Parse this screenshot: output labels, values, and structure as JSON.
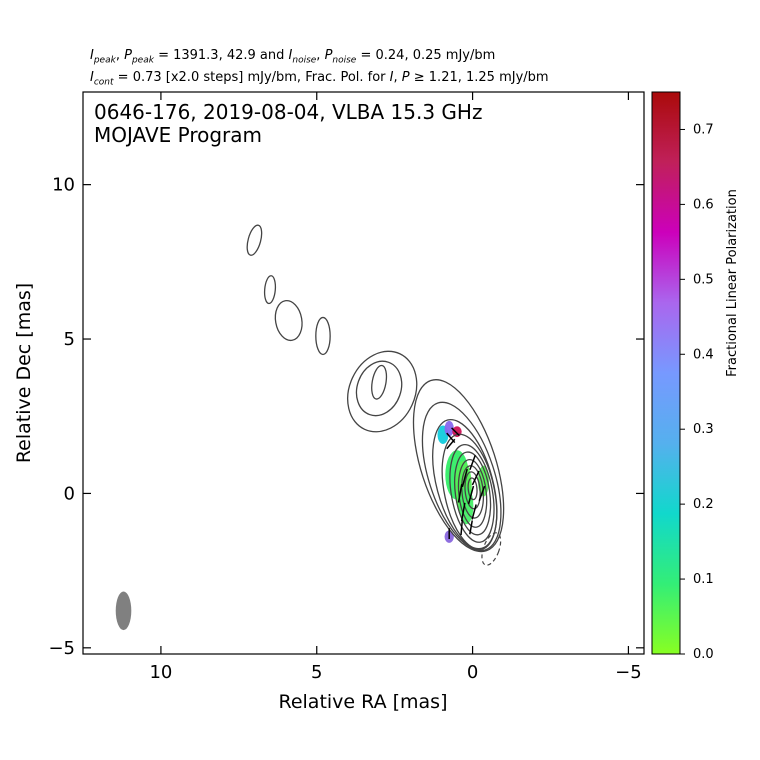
{
  "header": {
    "i_peak_label": "I",
    "i_peak_sub": "peak",
    "p_peak_label": "P",
    "p_peak_sub": "peak",
    "peak_values": "= 1391.3, 42.9 and",
    "i_noise_label": "I",
    "i_noise_sub": "noise",
    "p_noise_label": "P",
    "p_noise_sub": "noise",
    "noise_values": "= 0.24, 0.25 mJy/bm",
    "i_cont_label": "I",
    "i_cont_sub": "cont",
    "cont_text": "= 0.73 [x2.0 steps] mJy/bm, Frac. Pol. for",
    "frac_i": "I",
    "frac_p": "P",
    "frac_values": "≥ 1.21, 1.25 mJy/bm"
  },
  "chart_data": {
    "type": "contour",
    "title": "0646-176, 2019-08-04, VLBA 15.3 GHz",
    "subtitle": "MOJAVE Program",
    "xlabel": "Relative RA [mas]",
    "ylabel": "Relative Dec [mas]",
    "xlim": [
      12.5,
      -5.5
    ],
    "ylim": [
      -5.2,
      13.0
    ],
    "x_ticks": [
      10,
      5,
      0,
      -5
    ],
    "x_tick_labels": [
      "10",
      "5",
      "0",
      "−5"
    ],
    "y_ticks": [
      10,
      5,
      0,
      -5
    ],
    "y_tick_labels": [
      "10",
      "5",
      "0",
      "−5"
    ],
    "colorbar": {
      "label": "Fractional Linear Polarization",
      "range": [
        0.0,
        0.75
      ],
      "ticks": [
        0.0,
        0.1,
        0.2,
        0.3,
        0.4,
        0.5,
        0.6,
        0.7
      ],
      "tick_labels": [
        "0.0",
        "0.1",
        "0.2",
        "0.3",
        "0.4",
        "0.5",
        "0.6",
        "0.7"
      ],
      "colors": [
        "#88ff22",
        "#33ee77",
        "#11d8cc",
        "#55b0ee",
        "#7799ff",
        "#aa66ee",
        "#cc00bb",
        "#c0205a",
        "#aa0a0a"
      ]
    },
    "beam": {
      "x": 11.2,
      "y": -3.8,
      "major_mas": 1.25,
      "minor_mas": 0.5,
      "pa_deg": 0,
      "color": "#808080"
    },
    "contour_color": "#444444",
    "contours": [
      {
        "cx": 7.0,
        "cy": 8.2,
        "rx": 0.2,
        "ry": 0.5,
        "angle": 15
      },
      {
        "cx": 6.5,
        "cy": 6.6,
        "rx": 0.17,
        "ry": 0.45,
        "angle": 5
      },
      {
        "cx": 5.9,
        "cy": 5.6,
        "rx": 0.42,
        "ry": 0.65,
        "angle": -10
      },
      {
        "cx": 4.8,
        "cy": 5.1,
        "rx": 0.23,
        "ry": 0.6,
        "angle": 0
      },
      {
        "cx": 2.9,
        "cy": 3.3,
        "rx": 1.05,
        "ry": 1.35,
        "angle": 25
      },
      {
        "cx": 3.0,
        "cy": 3.4,
        "rx": 0.7,
        "ry": 0.9,
        "angle": 20
      },
      {
        "cx": 3.0,
        "cy": 3.6,
        "rx": 0.22,
        "ry": 0.55,
        "angle": 10
      },
      {
        "cx": 0.45,
        "cy": 0.9,
        "rx": 1.2,
        "ry": 2.9,
        "angle": -18
      },
      {
        "cx": 0.35,
        "cy": 0.55,
        "rx": 1.05,
        "ry": 2.5,
        "angle": -18
      },
      {
        "cx": 0.25,
        "cy": 0.3,
        "rx": 0.9,
        "ry": 2.15,
        "angle": -15
      },
      {
        "cx": 0.1,
        "cy": 0.05,
        "rx": 0.8,
        "ry": 1.9,
        "angle": -12
      },
      {
        "cx": 0.02,
        "cy": 0.0,
        "rx": 0.66,
        "ry": 1.6,
        "angle": -10
      },
      {
        "cx": 0.0,
        "cy": 0.0,
        "rx": 0.55,
        "ry": 1.35,
        "angle": -8
      },
      {
        "cx": 0.0,
        "cy": 0.0,
        "rx": 0.44,
        "ry": 1.1,
        "angle": -6
      },
      {
        "cx": 0.0,
        "cy": 0.05,
        "rx": 0.34,
        "ry": 0.85,
        "angle": -5
      },
      {
        "cx": 0.0,
        "cy": 0.1,
        "rx": 0.24,
        "ry": 0.6,
        "angle": -5
      },
      {
        "cx": 0.0,
        "cy": 0.15,
        "rx": 0.14,
        "ry": 0.35,
        "angle": -5
      }
    ],
    "negative_contours": [
      {
        "cx": -0.6,
        "cy": -1.8,
        "rx": 0.25,
        "ry": 0.55,
        "angle": 20
      }
    ],
    "polarization_patches": [
      {
        "x": 0.5,
        "y": 0.6,
        "w": 0.75,
        "h": 1.6,
        "color": "#33ee66"
      },
      {
        "x": 0.3,
        "y": 0.2,
        "w": 0.55,
        "h": 1.7,
        "color": "#55ee55"
      },
      {
        "x": 0.2,
        "y": -0.4,
        "w": 0.45,
        "h": 1.2,
        "color": "#44ee66"
      },
      {
        "x": -0.35,
        "y": 0.4,
        "w": 0.35,
        "h": 1.0,
        "color": "#55ee55"
      },
      {
        "x": 0.95,
        "y": 1.9,
        "w": 0.35,
        "h": 0.6,
        "color": "#11ccdd"
      },
      {
        "x": 0.75,
        "y": 2.1,
        "w": 0.3,
        "h": 0.5,
        "color": "#8866ee"
      },
      {
        "x": 0.5,
        "y": 2.0,
        "w": 0.3,
        "h": 0.35,
        "color": "#cc1155"
      },
      {
        "x": 0.75,
        "y": -1.4,
        "w": 0.3,
        "h": 0.4,
        "color": "#8866dd"
      }
    ],
    "evpa_vectors": [
      {
        "x": 0.0,
        "y": 1.0,
        "len": 0.5,
        "angle": 20
      },
      {
        "x": 0.25,
        "y": 0.5,
        "len": 0.6,
        "angle": 15
      },
      {
        "x": -0.1,
        "y": 0.5,
        "len": 0.5,
        "angle": 25
      },
      {
        "x": 0.4,
        "y": 0.0,
        "len": 0.6,
        "angle": 10
      },
      {
        "x": 0.05,
        "y": -0.05,
        "len": 0.6,
        "angle": 15
      },
      {
        "x": -0.3,
        "y": 0.0,
        "len": 0.5,
        "angle": 20
      },
      {
        "x": 0.3,
        "y": -0.6,
        "len": 0.6,
        "angle": 10
      },
      {
        "x": -0.05,
        "y": -0.6,
        "len": 0.5,
        "angle": 15
      },
      {
        "x": 0.35,
        "y": -1.1,
        "len": 0.5,
        "angle": 5
      },
      {
        "x": 0.05,
        "y": -1.1,
        "len": 0.45,
        "angle": 10
      },
      {
        "x": 0.7,
        "y": 1.8,
        "len": 0.4,
        "angle": -40
      },
      {
        "x": 0.7,
        "y": 1.6,
        "len": 0.4,
        "angle": 40
      },
      {
        "x": 0.55,
        "y": 2.0,
        "len": 0.35,
        "angle": -45
      },
      {
        "x": 0.75,
        "y": -1.3,
        "len": 0.35,
        "angle": 0
      }
    ]
  }
}
